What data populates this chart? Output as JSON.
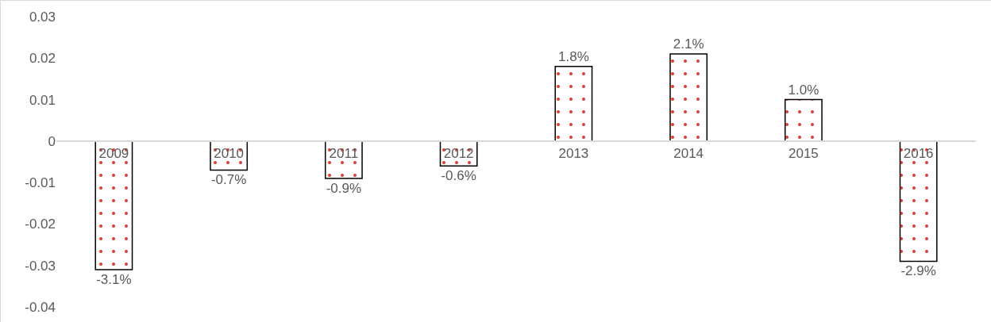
{
  "chart_data": {
    "type": "bar",
    "categories": [
      "2009",
      "2010",
      "2011",
      "2012",
      "2013",
      "2014",
      "2015",
      "2016"
    ],
    "values": [
      -0.031,
      -0.007,
      -0.009,
      -0.006,
      0.018,
      0.021,
      0.01,
      -0.029
    ],
    "value_labels": [
      "-3.1%",
      "-0.7%",
      "-0.9%",
      "-0.6%",
      "1.8%",
      "2.1%",
      "1.0%",
      "-2.9%"
    ],
    "color": "#000000",
    "ylim": [
      -0.04,
      0.03
    ],
    "yticks": [
      -0.04,
      -0.03,
      -0.02,
      -0.01,
      0,
      0.01,
      0.02,
      0.03
    ],
    "grid": false,
    "legend": false
  }
}
